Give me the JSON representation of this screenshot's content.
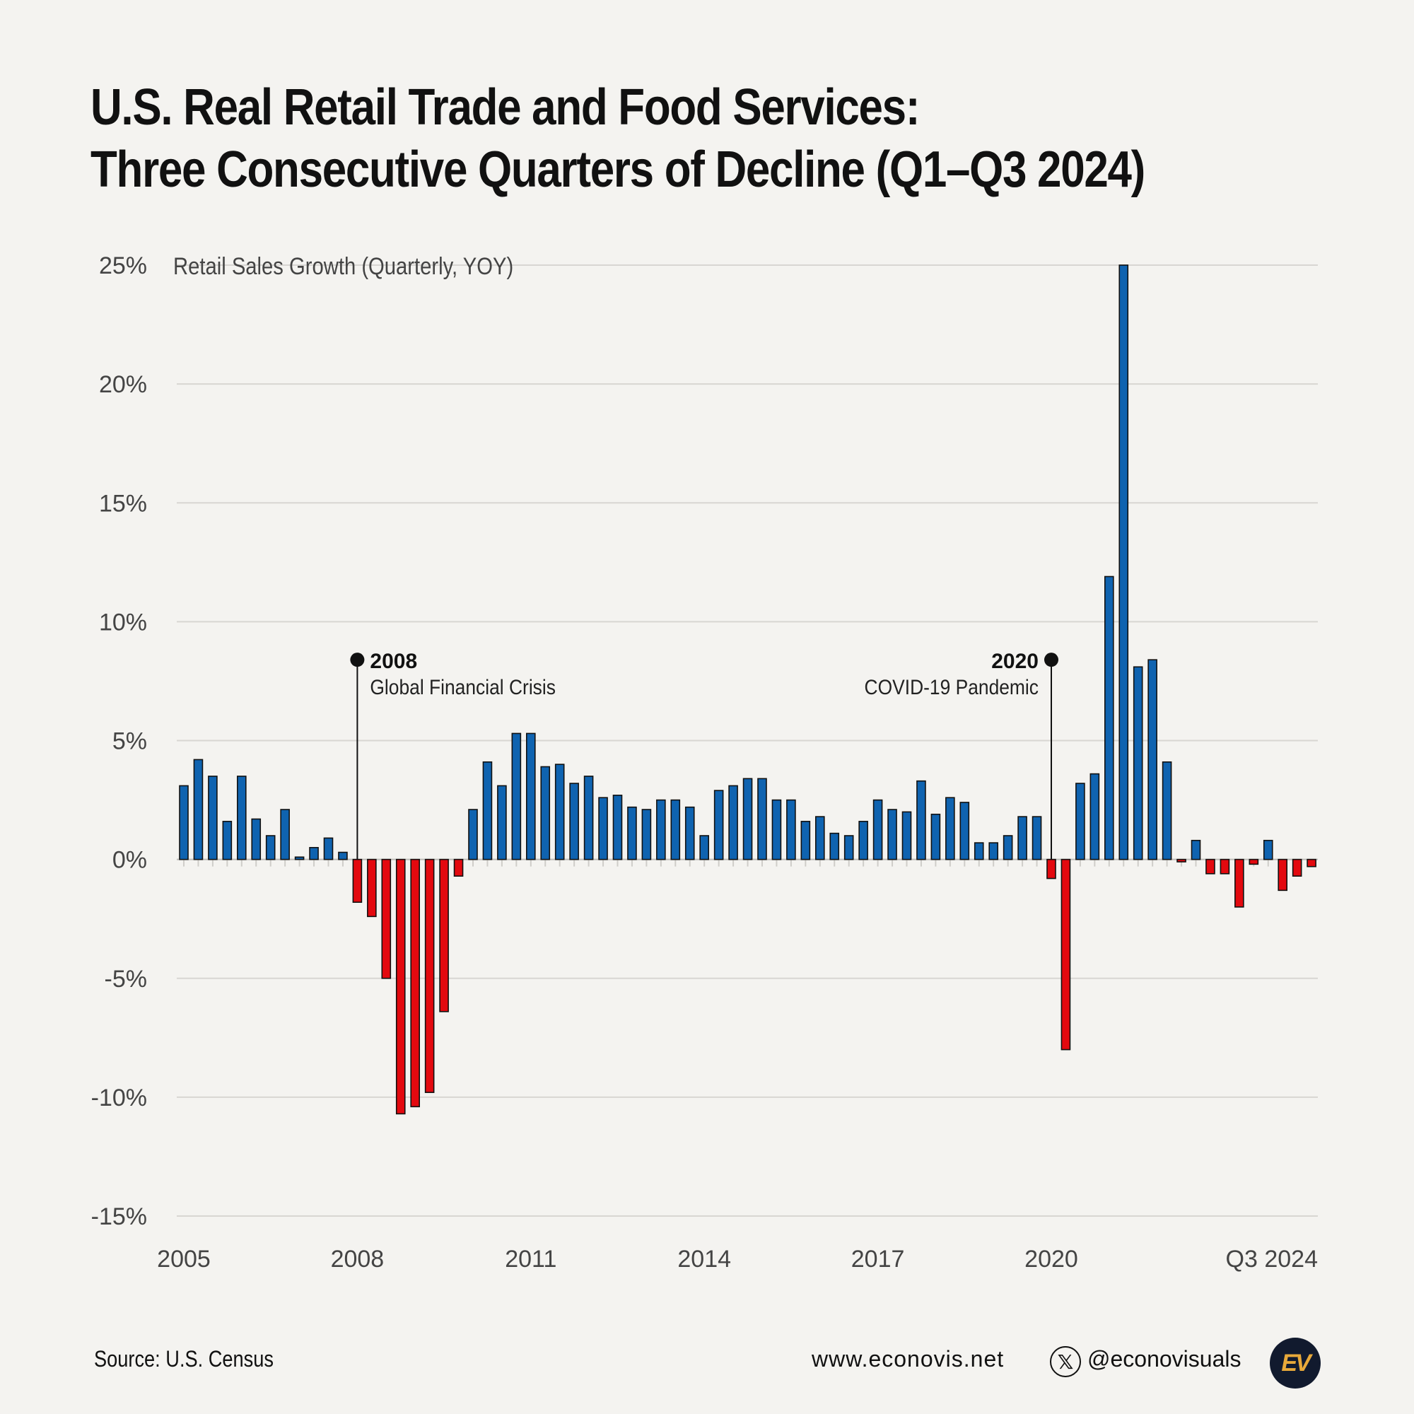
{
  "title": {
    "line1": "U.S. Real Retail Trade and Food Services:",
    "line2": "Three Consecutive Quarters of Decline (Q1–Q3 2024)"
  },
  "chart_data": {
    "type": "bar",
    "ylabel": "Retail Sales Growth (Quarterly, YOY)",
    "ylim": [
      -15,
      25
    ],
    "yticks": [
      25,
      20,
      15,
      10,
      5,
      0,
      -5,
      -10,
      -15
    ],
    "ytick_labels": [
      "25%",
      "20%",
      "15%",
      "10%",
      "5%",
      "0%",
      "-5%",
      "-10%",
      "-15%"
    ],
    "xtick_labels": [
      {
        "label": "2005",
        "index": 0
      },
      {
        "label": "2008",
        "index": 12
      },
      {
        "label": "2011",
        "index": 24
      },
      {
        "label": "2014",
        "index": 36
      },
      {
        "label": "2017",
        "index": 48
      },
      {
        "label": "2020",
        "index": 60
      },
      {
        "label": "Q3 2024",
        "index": 78
      }
    ],
    "grid": true,
    "positive_color": "#0f63b0",
    "negative_color": "#e3090f",
    "values": [
      3.1,
      4.2,
      3.5,
      1.6,
      3.5,
      1.7,
      1.0,
      2.1,
      0.1,
      0.5,
      0.9,
      0.3,
      -1.8,
      -2.4,
      -5.0,
      -10.7,
      -10.4,
      -9.8,
      -6.4,
      -0.7,
      2.1,
      4.1,
      3.1,
      5.3,
      5.3,
      3.9,
      4.0,
      3.2,
      3.5,
      2.6,
      2.7,
      2.2,
      2.1,
      2.5,
      2.5,
      2.2,
      1.0,
      2.9,
      3.1,
      3.4,
      3.4,
      2.5,
      2.5,
      1.6,
      1.8,
      1.1,
      1.0,
      1.6,
      2.5,
      2.1,
      2.0,
      3.3,
      1.9,
      2.6,
      2.4,
      0.7,
      0.7,
      1.0,
      1.8,
      1.8,
      -0.8,
      -8.0,
      3.2,
      3.6,
      11.9,
      25.0,
      8.1,
      8.4,
      4.1,
      -0.1,
      0.8,
      -0.6,
      -0.6,
      -2.0,
      -0.2,
      0.8,
      -1.3,
      -0.7,
      -0.3
    ],
    "annotations": [
      {
        "index": 12,
        "y": 8.4,
        "year": "2008",
        "text": "Global Financial Crisis",
        "align": "right"
      },
      {
        "index": 60,
        "y": 8.4,
        "year": "2020",
        "text": "COVID-19 Pandemic",
        "align": "left"
      }
    ]
  },
  "footer": {
    "source": "Source: U.S. Census",
    "website": "www.econovis.net",
    "x_icon": "𝕏",
    "handle": "@econovisuals",
    "logo": "EV"
  }
}
